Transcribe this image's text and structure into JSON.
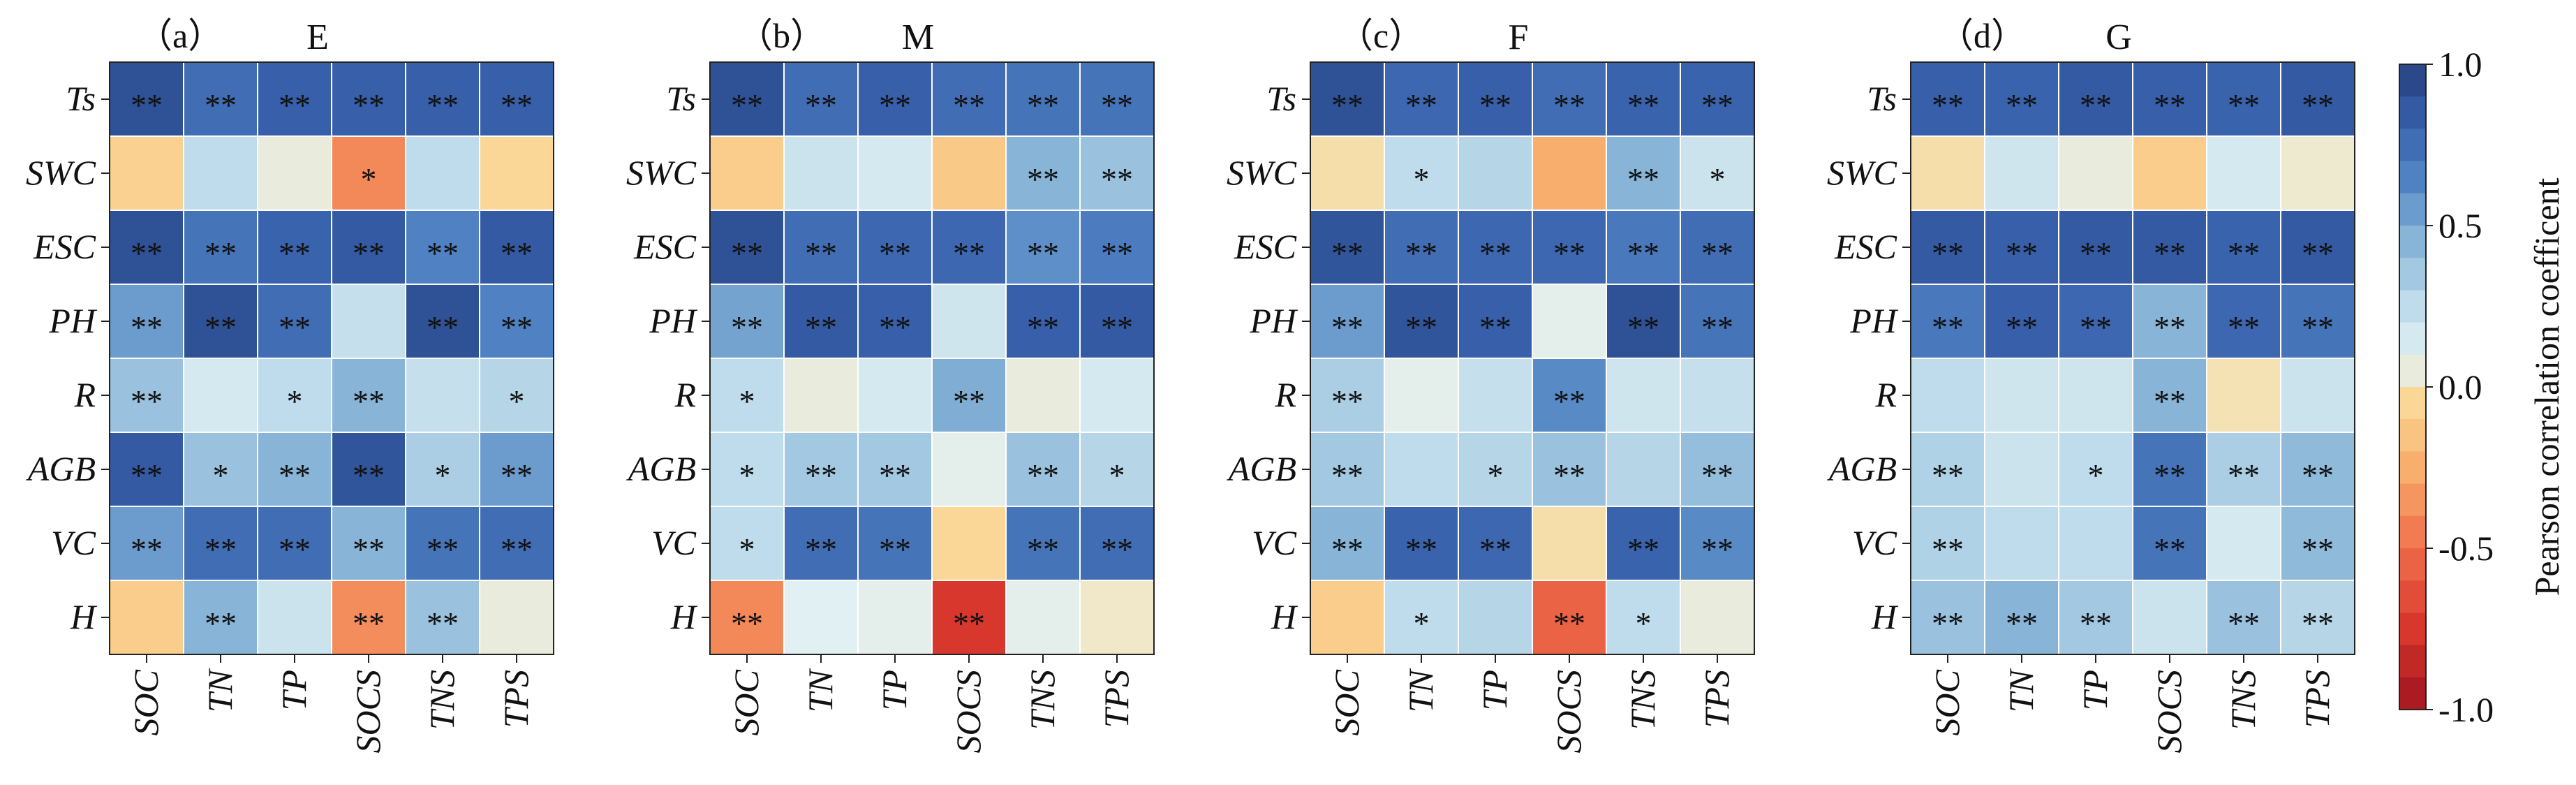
{
  "chart_data": {
    "type": "heatmap",
    "rows": [
      "Ts",
      "SWC",
      "ESC",
      "PH",
      "R",
      "AGB",
      "VC",
      "H"
    ],
    "columns": [
      "SOC",
      "TN",
      "TP",
      "SOCS",
      "TNS",
      "TPS"
    ],
    "colorbar": {
      "label": "Pearson correlation coefficent",
      "min": -1.0,
      "max": 1.0,
      "ticks": [
        "1.0",
        "0.5",
        "0.0",
        "-0.5",
        "-1.0"
      ],
      "tick_values": [
        1.0,
        0.5,
        0.0,
        -0.5,
        -1.0
      ]
    },
    "panels": [
      {
        "label": "（a）",
        "title": "E",
        "values": [
          [
            0.9,
            0.75,
            0.82,
            0.82,
            0.82,
            0.82
          ],
          [
            -0.08,
            0.25,
            0.05,
            -0.4,
            0.25,
            -0.05
          ],
          [
            0.9,
            0.72,
            0.8,
            0.85,
            0.65,
            0.85
          ],
          [
            0.55,
            0.9,
            0.75,
            0.22,
            0.9,
            0.65
          ],
          [
            0.38,
            0.15,
            0.25,
            0.45,
            0.22,
            0.28
          ],
          [
            0.85,
            0.38,
            0.45,
            0.88,
            0.32,
            0.55
          ],
          [
            0.55,
            0.75,
            0.75,
            0.45,
            0.72,
            0.75
          ],
          [
            -0.1,
            0.45,
            0.2,
            -0.38,
            0.38,
            0.05
          ]
        ],
        "stars": [
          [
            "**",
            "**",
            "**",
            "**",
            "**",
            "**"
          ],
          [
            "",
            "",
            "",
            "*",
            "",
            ""
          ],
          [
            "**",
            "**",
            "**",
            "**",
            "**",
            "**"
          ],
          [
            "**",
            "**",
            "**",
            "",
            "**",
            "**"
          ],
          [
            "**",
            "",
            "*",
            "**",
            "",
            "*"
          ],
          [
            "**",
            "*",
            "**",
            "**",
            "*",
            "**"
          ],
          [
            "**",
            "**",
            "**",
            "**",
            "**",
            "**"
          ],
          [
            "",
            "**",
            "",
            "**",
            "**",
            ""
          ]
        ]
      },
      {
        "label": "（b）",
        "title": "M",
        "values": [
          [
            0.9,
            0.75,
            0.82,
            0.75,
            0.72,
            0.72
          ],
          [
            -0.1,
            0.2,
            0.15,
            -0.12,
            0.45,
            0.38
          ],
          [
            0.9,
            0.75,
            0.78,
            0.78,
            0.6,
            0.68
          ],
          [
            0.52,
            0.85,
            0.82,
            0.18,
            0.82,
            0.85
          ],
          [
            0.25,
            0.05,
            0.15,
            0.48,
            0.05,
            0.15
          ],
          [
            0.25,
            0.35,
            0.35,
            0.08,
            0.38,
            0.28
          ],
          [
            0.25,
            0.75,
            0.72,
            -0.05,
            0.72,
            0.75
          ],
          [
            -0.4,
            0.1,
            0.08,
            -0.75,
            0.08,
            0.0
          ]
        ],
        "stars": [
          [
            "**",
            "**",
            "**",
            "**",
            "**",
            "**"
          ],
          [
            "",
            "",
            "",
            "",
            "**",
            "**"
          ],
          [
            "**",
            "**",
            "**",
            "**",
            "**",
            "**"
          ],
          [
            "**",
            "**",
            "**",
            "",
            "**",
            "**"
          ],
          [
            "*",
            "",
            "",
            "**",
            "",
            ""
          ],
          [
            "*",
            "**",
            "**",
            "",
            "**",
            "*"
          ],
          [
            "*",
            "**",
            "**",
            "",
            "**",
            "**"
          ],
          [
            "**",
            "",
            "",
            "**",
            "",
            ""
          ]
        ]
      },
      {
        "label": "（c）",
        "title": "F",
        "values": [
          [
            0.9,
            0.78,
            0.82,
            0.75,
            0.8,
            0.8
          ],
          [
            -0.03,
            0.25,
            0.28,
            -0.25,
            0.45,
            0.2
          ],
          [
            0.88,
            0.75,
            0.78,
            0.78,
            0.7,
            0.75
          ],
          [
            0.55,
            0.88,
            0.82,
            0.08,
            0.9,
            0.72
          ],
          [
            0.32,
            0.08,
            0.22,
            0.62,
            0.18,
            0.22
          ],
          [
            0.35,
            0.25,
            0.28,
            0.38,
            0.28,
            0.4
          ],
          [
            0.45,
            0.8,
            0.78,
            -0.03,
            0.8,
            0.62
          ],
          [
            -0.1,
            0.25,
            0.28,
            -0.55,
            0.25,
            0.05
          ]
        ],
        "stars": [
          [
            "**",
            "**",
            "**",
            "**",
            "**",
            "**"
          ],
          [
            "",
            "*",
            "",
            "",
            "**",
            "*"
          ],
          [
            "**",
            "**",
            "**",
            "**",
            "**",
            "**"
          ],
          [
            "**",
            "**",
            "**",
            "",
            "**",
            "**"
          ],
          [
            "**",
            "",
            "",
            "**",
            "",
            ""
          ],
          [
            "**",
            "",
            "*",
            "**",
            "",
            "**"
          ],
          [
            "**",
            "**",
            "**",
            "",
            "**",
            "**"
          ],
          [
            "",
            "*",
            "",
            "**",
            "*",
            ""
          ]
        ]
      },
      {
        "label": "（d）",
        "title": "G",
        "values": [
          [
            0.82,
            0.8,
            0.85,
            0.82,
            0.8,
            0.85
          ],
          [
            -0.03,
            0.18,
            0.05,
            -0.1,
            0.15,
            0.02
          ],
          [
            0.85,
            0.82,
            0.85,
            0.85,
            0.8,
            0.85
          ],
          [
            0.7,
            0.82,
            0.78,
            0.45,
            0.78,
            0.72
          ],
          [
            0.25,
            0.18,
            0.18,
            0.45,
            -0.02,
            0.2
          ],
          [
            0.3,
            0.2,
            0.25,
            0.72,
            0.32,
            0.42
          ],
          [
            0.3,
            0.25,
            0.25,
            0.72,
            0.15,
            0.42
          ],
          [
            0.38,
            0.45,
            0.35,
            0.2,
            0.38,
            0.28
          ]
        ],
        "stars": [
          [
            "**",
            "**",
            "**",
            "**",
            "**",
            "**"
          ],
          [
            "",
            "",
            "",
            "",
            "",
            ""
          ],
          [
            "**",
            "**",
            "**",
            "**",
            "**",
            "**"
          ],
          [
            "**",
            "**",
            "**",
            "**",
            "**",
            "**"
          ],
          [
            "",
            "",
            "",
            "**",
            "",
            ""
          ],
          [
            "**",
            "",
            "*",
            "**",
            "**",
            "**"
          ],
          [
            "**",
            "",
            "",
            "**",
            "",
            "**"
          ],
          [
            "**",
            "**",
            "**",
            "",
            "**",
            "**"
          ]
        ]
      }
    ]
  }
}
